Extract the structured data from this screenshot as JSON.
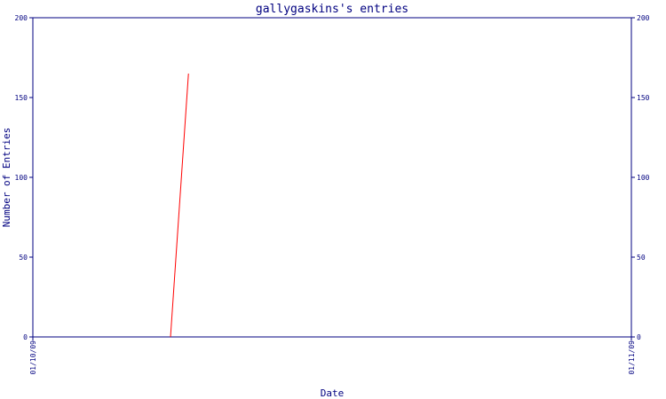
{
  "chart_data": {
    "type": "line",
    "title": "gallygaskins's entries",
    "x_label": "Date",
    "y_label": "Number of Entries",
    "x": [
      0.23,
      0.26
    ],
    "series": [
      {
        "name": "entries",
        "color": "#ff0000",
        "values": [
          0,
          165
        ]
      }
    ],
    "xlim": [
      0,
      1
    ],
    "xticks": [
      {
        "value": 0,
        "label": "01/10/09"
      },
      {
        "value": 1,
        "label": "01/11/09"
      }
    ],
    "ylim": [
      0,
      200
    ],
    "yticks": [
      0,
      50,
      100,
      150,
      200
    ],
    "y2lim": [
      0,
      200
    ],
    "y2ticks": [
      0,
      50,
      100,
      150,
      200
    ],
    "axis_color": "#000080"
  }
}
